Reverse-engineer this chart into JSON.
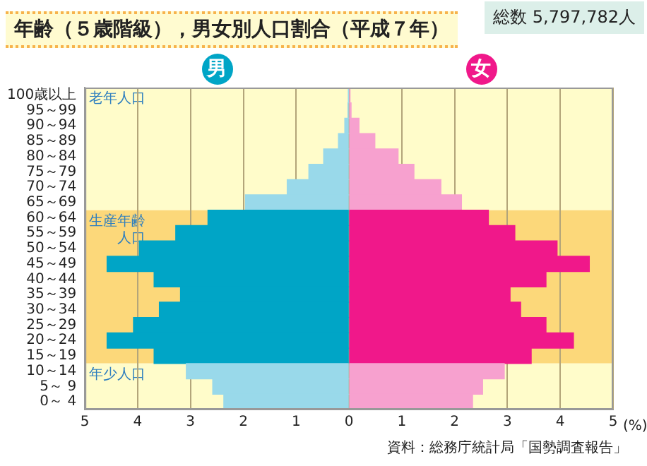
{
  "chart_data": {
    "type": "bar",
    "orientation": "horizontal",
    "title": "年齢（５歳階級），男女別人口割合（平成７年）",
    "categories": [
      "100歳以上",
      "95～99",
      "90～94",
      "85～89",
      "80～84",
      "75～79",
      "70～74",
      "65～69",
      "60～64",
      "55～59",
      "50～54",
      "45～49",
      "40～44",
      "35～39",
      "30～34",
      "25～29",
      "20～24",
      "15～19",
      "10～14",
      "5～ 9",
      "0～ 4"
    ],
    "series": [
      {
        "name": "男",
        "color": "#00a5c6",
        "colors": [
          "#99d9ea",
          "#99d9ea",
          "#99d9ea",
          "#99d9ea",
          "#99d9ea",
          "#99d9ea",
          "#99d9ea",
          "#99d9ea",
          "#00a5c6",
          "#00a5c6",
          "#00a5c6",
          "#00a5c6",
          "#00a5c6",
          "#00a5c6",
          "#00a5c6",
          "#00a5c6",
          "#00a5c6",
          "#00a5c6",
          "#99d9ea",
          "#99d9ea",
          "#99d9ea"
        ],
        "values": [
          -0.01,
          -0.02,
          -0.08,
          -0.2,
          -0.48,
          -0.76,
          -1.17,
          -1.96,
          -2.67,
          -3.28,
          -3.97,
          -4.58,
          -3.69,
          -3.19,
          -3.59,
          -4.08,
          -4.58,
          -3.69,
          -3.08,
          -2.58,
          -2.37
        ]
      },
      {
        "name": "女",
        "color": "#f0188a",
        "colors": [
          "#f7a1cf",
          "#f7a1cf",
          "#f7a1cf",
          "#f7a1cf",
          "#f7a1cf",
          "#f7a1cf",
          "#f7a1cf",
          "#f7a1cf",
          "#f0188a",
          "#f0188a",
          "#f0188a",
          "#f0188a",
          "#f0188a",
          "#f0188a",
          "#f0188a",
          "#f0188a",
          "#f0188a",
          "#f0188a",
          "#f7a1cf",
          "#f7a1cf",
          "#f7a1cf"
        ],
        "values": [
          0.02,
          0.04,
          0.19,
          0.49,
          0.93,
          1.23,
          1.74,
          2.13,
          2.64,
          3.14,
          3.94,
          4.55,
          3.73,
          3.05,
          3.25,
          3.73,
          4.25,
          3.45,
          2.94,
          2.53,
          2.34
        ]
      }
    ],
    "xlim": [
      -5,
      5
    ],
    "xticks": [
      {
        "value": -5,
        "label": "5"
      },
      {
        "value": -4,
        "label": "4"
      },
      {
        "value": -3,
        "label": "3"
      },
      {
        "value": -2,
        "label": "2"
      },
      {
        "value": -1,
        "label": "1"
      },
      0,
      1,
      2,
      3,
      4,
      5
    ],
    "xlabel": "(%)",
    "bands": [
      {
        "axis": "y",
        "from": "100歳以上",
        "to": "65～69",
        "label": "老年人口",
        "color": "#fffcca"
      },
      {
        "axis": "y",
        "from": "60～64",
        "to": "15～19",
        "label": "生産年齢人口",
        "color": "#fcd87a"
      },
      {
        "axis": "y",
        "from": "10～14",
        "to": "0～ 4",
        "label": "年少人口",
        "color": "#fffcca"
      }
    ],
    "annotations": [
      "総数 5,797,782人",
      "資料：総務庁統計局「国勢調査報告」"
    ],
    "grid": "x",
    "legend": false,
    "stacked": true
  }
}
